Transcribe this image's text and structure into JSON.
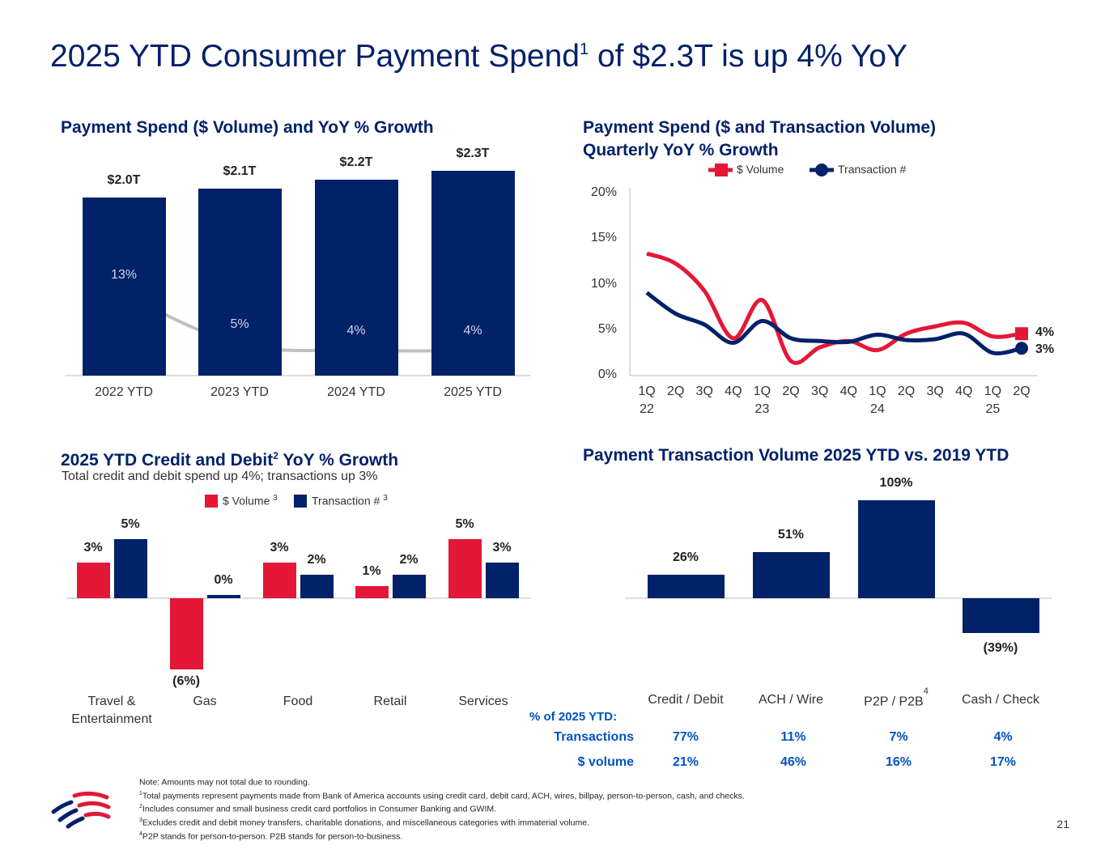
{
  "title": {
    "main": "2025 YTD Consumer Payment Spend",
    "sup": "1",
    "rest": " of $2.3T is up 4% YoY"
  },
  "colors": {
    "navy": "#012169",
    "red": "#E31837",
    "gray_line": "#BFBFBF",
    "table_blue": "#0053C2"
  },
  "chart_data": [
    {
      "type": "bar",
      "title": "Payment Spend ($ Volume) and YoY % Growth",
      "categories": [
        "2022 YTD",
        "2023 YTD",
        "2024 YTD",
        "2025 YTD"
      ],
      "values": [
        2.0,
        2.1,
        2.2,
        2.3
      ],
      "value_labels": [
        "$2.0T",
        "$2.1T",
        "$2.2T",
        "$2.3T"
      ],
      "overlay_line": {
        "type": "line",
        "values": [
          13,
          5,
          4,
          4
        ],
        "labels": [
          "13%",
          "5%",
          "4%",
          "4%"
        ]
      }
    },
    {
      "type": "line",
      "title_line1": "Payment Spend ($ and Transaction Volume)",
      "title_line2": "Quarterly YoY % Growth",
      "x": [
        "1Q22",
        "2Q22",
        "3Q22",
        "4Q22",
        "1Q23",
        "2Q23",
        "3Q23",
        "4Q23",
        "1Q24",
        "2Q24",
        "3Q24",
        "4Q24",
        "1Q25",
        "2Q25"
      ],
      "x_tick_labels": [
        "1Q",
        "2Q",
        "3Q",
        "4Q",
        "1Q",
        "2Q",
        "3Q",
        "4Q",
        "1Q",
        "2Q",
        "3Q",
        "4Q",
        "1Q",
        "2Q"
      ],
      "x_year_labels": [
        "22",
        "",
        "",
        "",
        "23",
        "",
        "",
        "",
        "24",
        "",
        "",
        "",
        "25",
        ""
      ],
      "ylim": [
        0,
        20
      ],
      "yticks": [
        "0%",
        "5%",
        "10%",
        "15%",
        "20%"
      ],
      "legend": "top",
      "series": [
        {
          "name": "$ Volume",
          "color": "#E31837",
          "marker": "square",
          "end_label": "4%",
          "values": [
            13.4,
            12.3,
            9.3,
            4.1,
            8.3,
            1.6,
            3.1,
            3.8,
            2.8,
            4.6,
            5.4,
            5.8,
            4.3,
            4.6
          ]
        },
        {
          "name": "Transaction #",
          "color": "#012169",
          "marker": "circle",
          "end_label": "3%",
          "values": [
            9.1,
            6.8,
            5.6,
            3.6,
            6.0,
            4.1,
            3.8,
            3.7,
            4.5,
            3.9,
            4.0,
            4.6,
            2.5,
            3.0
          ]
        }
      ]
    },
    {
      "type": "bar",
      "title": "2025 YTD Credit and Debit",
      "title_sup": "2",
      "title_rest": " YoY % Growth",
      "subtitle": "Total credit and debit spend up 4%; transactions up 3%",
      "categories": [
        "Travel & Entertainment",
        "Gas",
        "Food",
        "Retail",
        "Services"
      ],
      "legend": "top",
      "series": [
        {
          "name": "$ Volume",
          "sup": "3",
          "color": "#E31837",
          "values": [
            3,
            -6,
            3,
            1,
            5
          ],
          "labels": [
            "3%",
            "(6%)",
            "3%",
            "1%",
            "5%"
          ]
        },
        {
          "name": "Transaction #",
          "sup": "3",
          "color": "#012169",
          "values": [
            5,
            0,
            2,
            2,
            3
          ],
          "labels": [
            "5%",
            "0%",
            "2%",
            "2%",
            "3%"
          ]
        }
      ]
    },
    {
      "type": "bar",
      "title": "Payment Transaction Volume 2025 YTD vs. 2019 YTD",
      "categories": [
        "Credit / Debit",
        "ACH / Wire",
        "P2P / P2B",
        "Cash / Check"
      ],
      "category_sups": [
        "",
        "",
        "4",
        ""
      ],
      "values": [
        26,
        51,
        109,
        -39
      ],
      "labels": [
        "26%",
        "51%",
        "109%",
        "(39%)"
      ],
      "table": {
        "heading": "% of 2025 YTD:",
        "rows": [
          {
            "label": "Transactions",
            "values": [
              "77%",
              "11%",
              "7%",
              "4%"
            ]
          },
          {
            "label": "$ volume",
            "values": [
              "21%",
              "46%",
              "16%",
              "17%"
            ]
          }
        ]
      }
    }
  ],
  "footnotes": [
    {
      "sup": "",
      "text": "Note: Amounts may not total due to rounding."
    },
    {
      "sup": "1",
      "text": "Total payments represent payments made from Bank of America accounts using credit card, debit card, ACH, wires, billpay, person-to-person, cash, and checks."
    },
    {
      "sup": "2",
      "text": "Includes consumer and small business credit card portfolios in Consumer Banking and GWIM."
    },
    {
      "sup": "3",
      "text": "Excludes credit and debit money transfers, charitable donations, and miscellaneous categories with immaterial volume."
    },
    {
      "sup": "4",
      "text": "P2P stands for person-to-person. P2B stands for person-to-business."
    }
  ],
  "logo": "bank-of-america-flag-logo",
  "page_number": "21"
}
